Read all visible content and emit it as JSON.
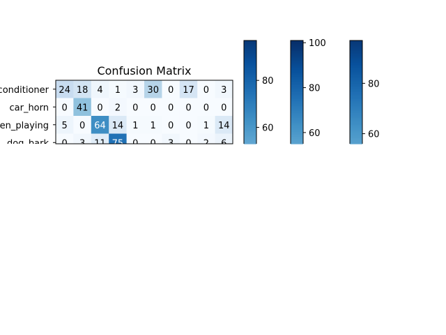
{
  "chart_data": {
    "type": "heatmap",
    "title": "Confusion Matrix",
    "row_labels": [
      "air_conditioner",
      "car_horn",
      "children_playing",
      "dog_bark"
    ],
    "rows": [
      [
        24,
        18,
        4,
        1,
        3,
        30,
        0,
        17,
        0,
        3
      ],
      [
        0,
        41,
        0,
        2,
        0,
        0,
        0,
        0,
        0,
        0
      ],
      [
        5,
        0,
        64,
        14,
        1,
        1,
        0,
        0,
        1,
        14
      ],
      [
        0,
        3,
        11,
        75,
        0,
        0,
        3,
        0,
        2,
        6
      ]
    ],
    "color_scale": {
      "name": "Blues",
      "vmin": 0,
      "vmax": 100
    },
    "colorbars": [
      {
        "ticks": [
          80,
          60
        ],
        "range": [
          53,
          97
        ]
      },
      {
        "ticks": [
          100,
          80,
          60
        ],
        "range": [
          55,
          101
        ]
      },
      {
        "ticks": [
          80,
          60
        ],
        "range": [
          56,
          97
        ]
      }
    ],
    "grid": false
  }
}
